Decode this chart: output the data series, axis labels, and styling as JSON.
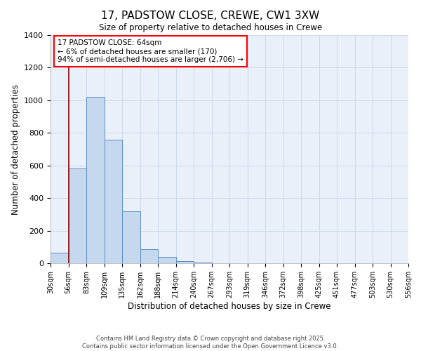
{
  "title": "17, PADSTOW CLOSE, CREWE, CW1 3XW",
  "subtitle": "Size of property relative to detached houses in Crewe",
  "xlabel": "Distribution of detached houses by size in Crewe",
  "ylabel": "Number of detached properties",
  "bar_values": [
    65,
    580,
    1020,
    760,
    320,
    85,
    40,
    15,
    5,
    2,
    0,
    0,
    0,
    0,
    0,
    0,
    0,
    0,
    0,
    0
  ],
  "bin_labels": [
    "30sqm",
    "56sqm",
    "83sqm",
    "109sqm",
    "135sqm",
    "162sqm",
    "188sqm",
    "214sqm",
    "240sqm",
    "267sqm",
    "293sqm",
    "319sqm",
    "346sqm",
    "372sqm",
    "398sqm",
    "425sqm",
    "451sqm",
    "477sqm",
    "503sqm",
    "530sqm",
    "556sqm"
  ],
  "bar_color": "#c5d8ed",
  "bar_edge_color": "#5b8fc9",
  "background_color": "#eaf0fa",
  "grid_color": "#c8d4e8",
  "vline_x": 1,
  "vline_color": "#8b0000",
  "ylim": [
    0,
    1400
  ],
  "yticks": [
    0,
    200,
    400,
    600,
    800,
    1000,
    1200,
    1400
  ],
  "annotation_title": "17 PADSTOW CLOSE: 64sqm",
  "annotation_line1": "← 6% of detached houses are smaller (170)",
  "annotation_line2": "94% of semi-detached houses are larger (2,706) →",
  "footnote1": "Contains HM Land Registry data © Crown copyright and database right 2025.",
  "footnote2": "Contains public sector information licensed under the Open Government Licence v3.0."
}
